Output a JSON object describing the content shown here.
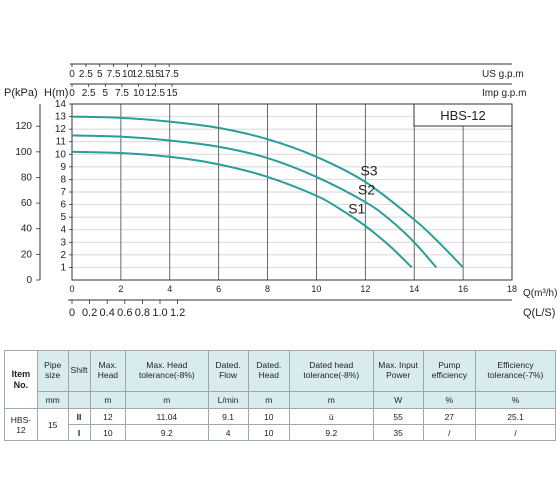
{
  "chart_data": {
    "type": "line",
    "title": "",
    "model_label": "HBS-12",
    "left_axes": {
      "pressure": {
        "label": "P(kPa)",
        "ticks": [
          0,
          20,
          40,
          60,
          80,
          100,
          120
        ]
      },
      "head": {
        "label": "H(m)",
        "ylim": [
          0,
          14
        ],
        "ticks": [
          1,
          2,
          3,
          4,
          5,
          6,
          7,
          8,
          9,
          10,
          11,
          12,
          13,
          14
        ]
      }
    },
    "top_axes": {
      "us_gpm": {
        "label": "US g.p.m",
        "ticks": [
          0,
          2.5,
          5,
          7.5,
          10,
          12.5,
          15,
          17.5
        ]
      },
      "imp_gpm": {
        "label": "Imp g.p.m",
        "ticks": [
          0,
          2.5,
          5,
          7.5,
          10,
          12.5,
          15
        ]
      }
    },
    "bottom_axes": {
      "flow_m3h": {
        "label": "Q(m³/h)",
        "xlim": [
          0,
          18
        ],
        "ticks": [
          0,
          2,
          4,
          6,
          8,
          10,
          12,
          14,
          16,
          18
        ]
      },
      "flow_ls": {
        "label": "Q(L/S)",
        "ticks": [
          0,
          0.2,
          0.4,
          0.6,
          0.8,
          1.0,
          1.2
        ]
      }
    },
    "series": [
      {
        "name": "S3",
        "color": "#2a9d9a",
        "points": [
          [
            0,
            13
          ],
          [
            2,
            12.9
          ],
          [
            4,
            12.6
          ],
          [
            6,
            12.1
          ],
          [
            8,
            11.2
          ],
          [
            10,
            9.8
          ],
          [
            12,
            7.8
          ],
          [
            14,
            4.8
          ],
          [
            15,
            3
          ],
          [
            16,
            1
          ]
        ]
      },
      {
        "name": "S2",
        "color": "#2a9d9a",
        "points": [
          [
            0,
            11.5
          ],
          [
            2,
            11.4
          ],
          [
            4,
            11.1
          ],
          [
            6,
            10.6
          ],
          [
            8,
            9.7
          ],
          [
            10,
            8.2
          ],
          [
            12,
            6.2
          ],
          [
            13,
            4.8
          ],
          [
            14,
            3
          ],
          [
            14.9,
            1
          ]
        ]
      },
      {
        "name": "S1",
        "color": "#2a9d9a",
        "points": [
          [
            0,
            10.2
          ],
          [
            2,
            10.1
          ],
          [
            4,
            9.8
          ],
          [
            6,
            9.2
          ],
          [
            8,
            8.2
          ],
          [
            10,
            6.7
          ],
          [
            11,
            5.6
          ],
          [
            12,
            4.3
          ],
          [
            13,
            2.7
          ],
          [
            13.9,
            1
          ]
        ]
      }
    ],
    "grid": true
  },
  "table": {
    "headers": [
      "Item No.",
      "Pipe size",
      "Shift",
      "Max. Head",
      "Max. Head tolerance(-8%)",
      "Dated. Flow",
      "Dated. Head",
      "Dated head tolerance(-8%)",
      "Max. Input Power",
      "Pump efficiency",
      "Efficiency tolerance(-7%)"
    ],
    "units": [
      "mm",
      "",
      "m",
      "m",
      "L/min",
      "m",
      "m",
      "W",
      "%",
      "%"
    ],
    "item": "HBS-12",
    "pipe_size": "15",
    "rows": [
      [
        "II",
        "12",
        "11.04",
        "9.1",
        "10",
        "ü",
        "55",
        "27",
        "25.1"
      ],
      [
        "I",
        "10",
        "9.2",
        "4",
        "10",
        "9.2",
        "35",
        "/",
        "/"
      ]
    ]
  }
}
